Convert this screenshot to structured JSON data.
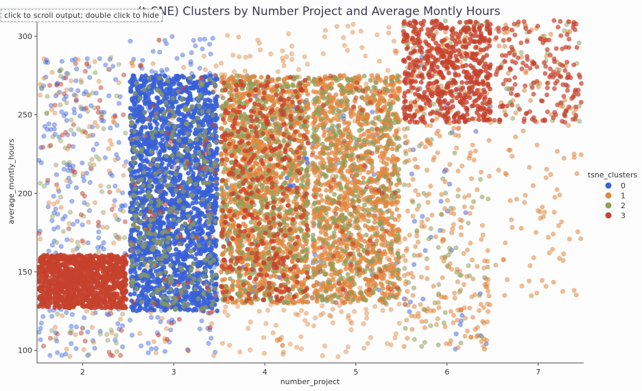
{
  "notebook": {
    "scroll_hint": "click to scroll output; double click to hide"
  },
  "chart_data": {
    "type": "scatter",
    "title": "(t-SNE) Clusters by Number Project and Average Montly Hours",
    "xlabel": "number_project",
    "ylabel": "average_montly_hours",
    "xlim": [
      1.5,
      7.5
    ],
    "ylim": [
      92,
      310
    ],
    "x_ticks": [
      2,
      3,
      4,
      5,
      6,
      7
    ],
    "y_ticks": [
      100,
      150,
      200,
      250,
      300
    ],
    "grid": false,
    "jitter": 0.48,
    "legend": {
      "title": "tsne_clusters",
      "placement": "right",
      "entries": [
        "0",
        "1",
        "2",
        "3"
      ]
    },
    "colors": {
      "0": "#3a61d6",
      "1": "#e0873f",
      "2": "#8f9e5a",
      "3": "#c6422d"
    },
    "clusters": [
      {
        "name": "0",
        "regions": [
          {
            "x": 2,
            "y": [
              96,
              288
            ],
            "n": 220,
            "alpha": 0.45
          },
          {
            "x": 3,
            "y": [
              125,
              275
            ],
            "n": 2300,
            "alpha": 0.9
          },
          {
            "x": 3,
            "y": [
              96,
              300
            ],
            "n": 200,
            "alpha": 0.45
          },
          {
            "x": 4,
            "y": [
              130,
              270
            ],
            "n": 50,
            "alpha": 0.7
          },
          {
            "x": 5,
            "y": [
              130,
              270
            ],
            "n": 40,
            "alpha": 0.5
          },
          {
            "x": 6,
            "y": [
              100,
              290
            ],
            "n": 40,
            "alpha": 0.5
          }
        ]
      },
      {
        "name": "1",
        "regions": [
          {
            "x": 2,
            "y": [
              96,
              288
            ],
            "n": 90,
            "alpha": 0.45
          },
          {
            "x": 3,
            "y": [
              96,
              300
            ],
            "n": 70,
            "alpha": 0.45
          },
          {
            "x": 4,
            "y": [
              130,
              275
            ],
            "n": 1500,
            "alpha": 0.8
          },
          {
            "x": 4,
            "y": [
              96,
              305
            ],
            "n": 200,
            "alpha": 0.45
          },
          {
            "x": 5,
            "y": [
              130,
              275
            ],
            "n": 1250,
            "alpha": 0.75
          },
          {
            "x": 5,
            "y": [
              96,
              310
            ],
            "n": 200,
            "alpha": 0.45
          },
          {
            "x": 6,
            "y": [
              100,
              310
            ],
            "n": 330,
            "alpha": 0.55
          },
          {
            "x": 7,
            "y": [
              133,
              310
            ],
            "n": 120,
            "alpha": 0.55
          }
        ]
      },
      {
        "name": "2",
        "regions": [
          {
            "x": 2,
            "y": [
              96,
              288
            ],
            "n": 90,
            "alpha": 0.45
          },
          {
            "x": 3,
            "y": [
              125,
              275
            ],
            "n": 300,
            "alpha": 0.7
          },
          {
            "x": 4,
            "y": [
              130,
              275
            ],
            "n": 450,
            "alpha": 0.75
          },
          {
            "x": 5,
            "y": [
              130,
              275
            ],
            "n": 350,
            "alpha": 0.7
          },
          {
            "x": 6,
            "y": [
              100,
              310
            ],
            "n": 100,
            "alpha": 0.55
          },
          {
            "x": 7,
            "y": [
              245,
              310
            ],
            "n": 30,
            "alpha": 0.5
          }
        ]
      },
      {
        "name": "3",
        "regions": [
          {
            "x": 2,
            "y": [
              127,
              161
            ],
            "n": 1000,
            "alpha": 0.9
          },
          {
            "x": 2,
            "y": [
              96,
              288
            ],
            "n": 60,
            "alpha": 0.5
          },
          {
            "x": 3,
            "y": [
              96,
              300
            ],
            "n": 40,
            "alpha": 0.6
          },
          {
            "x": 4,
            "y": [
              130,
              275
            ],
            "n": 350,
            "alpha": 0.7
          },
          {
            "x": 5,
            "y": [
              130,
              275
            ],
            "n": 60,
            "alpha": 0.6
          },
          {
            "x": 6,
            "y": [
              245,
              310
            ],
            "n": 550,
            "alpha": 0.8
          },
          {
            "x": 7,
            "y": [
              245,
              310
            ],
            "n": 170,
            "alpha": 0.7
          }
        ]
      }
    ]
  }
}
